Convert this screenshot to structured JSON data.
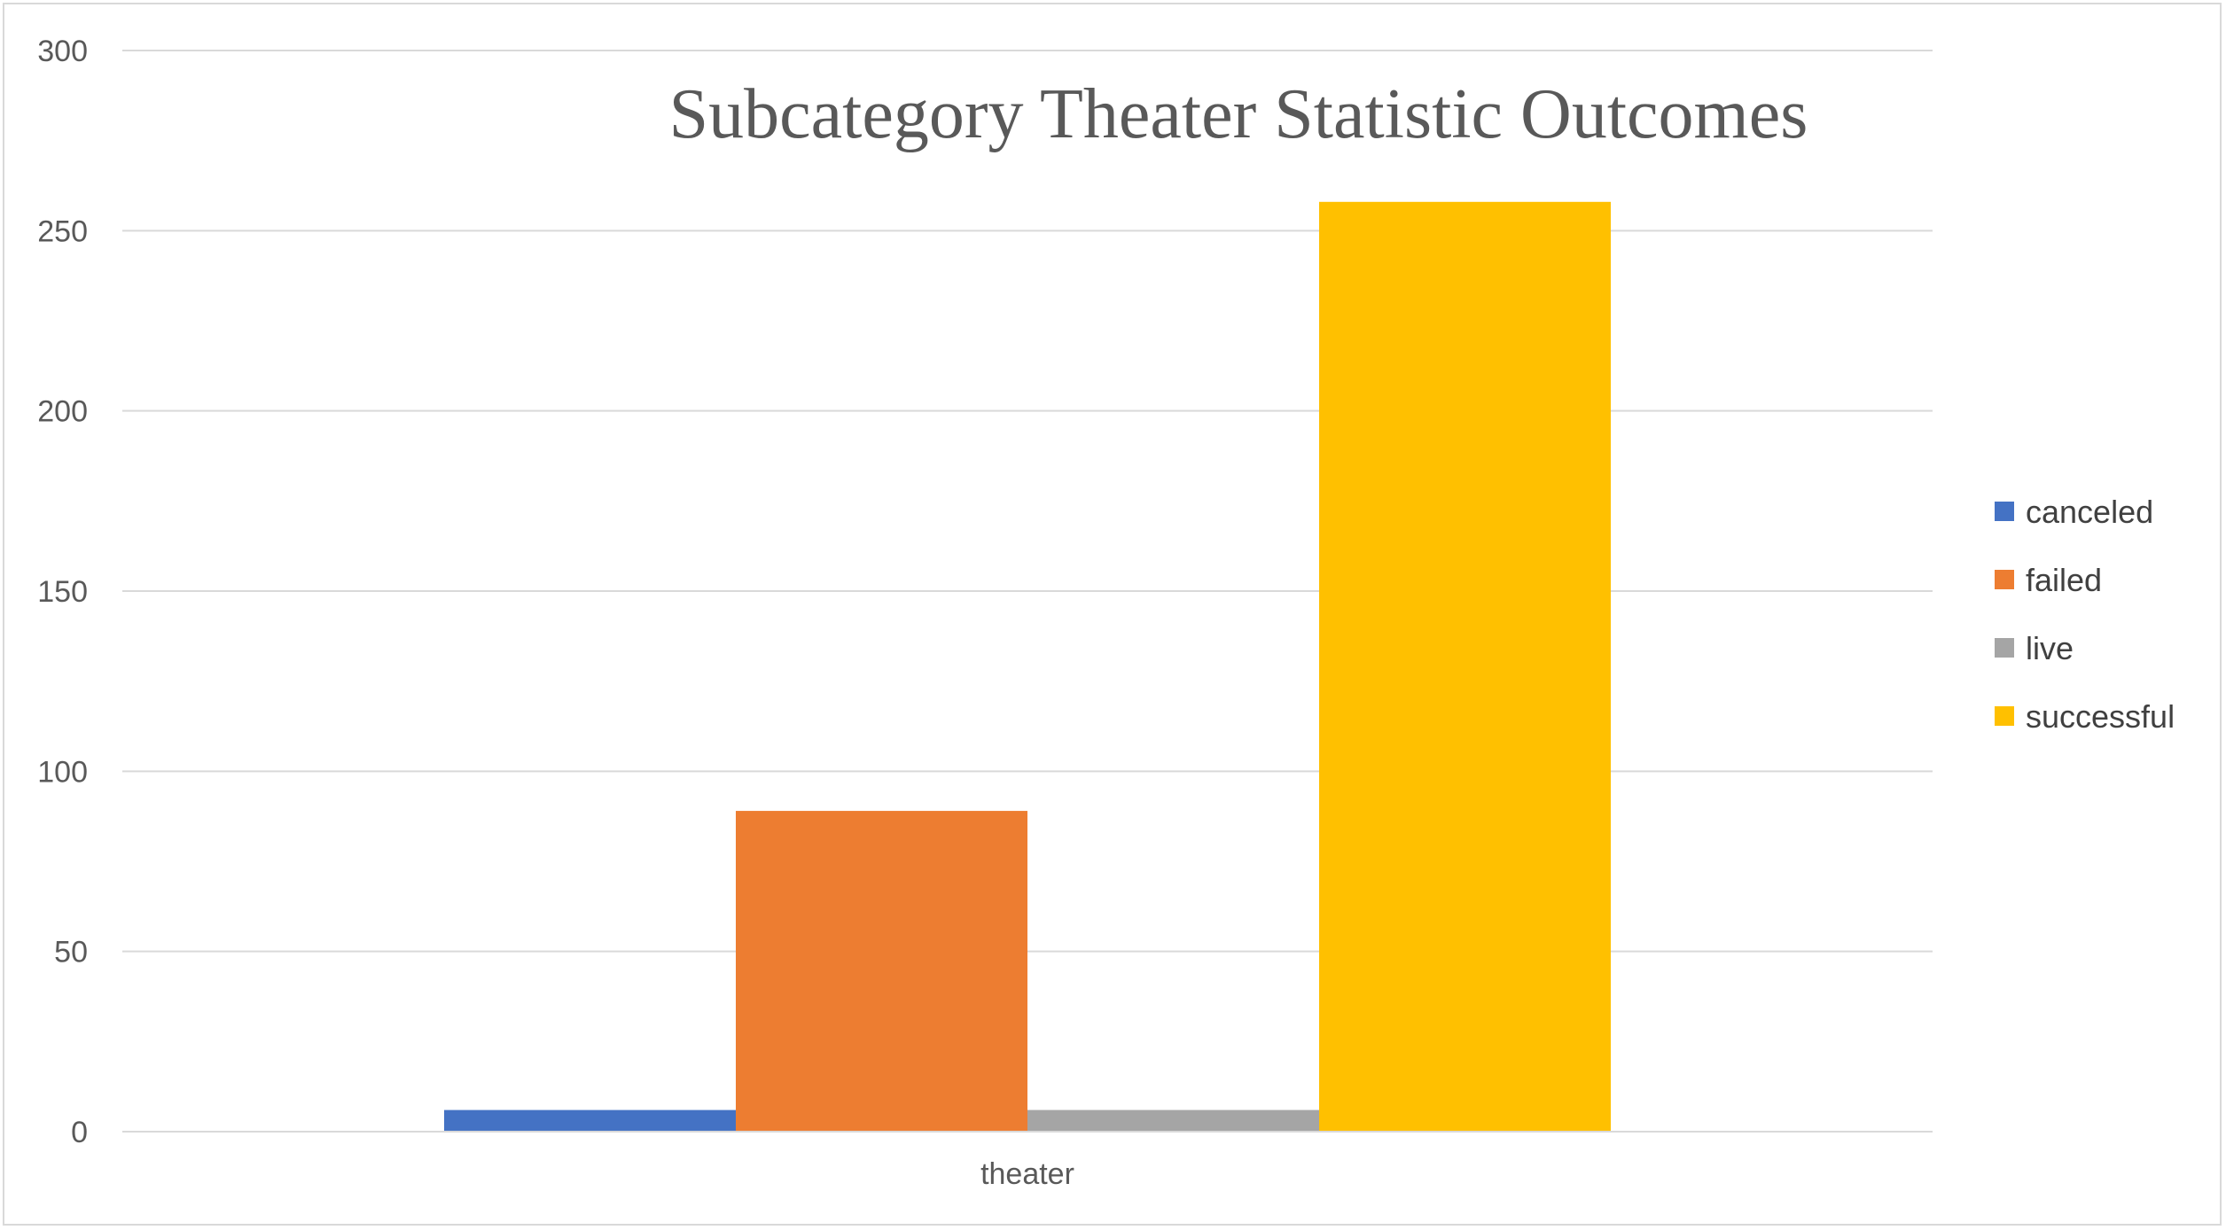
{
  "chart_data": {
    "type": "bar",
    "title": "Subcategory Theater Statistic Outcomes",
    "xlabel": "",
    "ylabel": "",
    "categories": [
      "theater"
    ],
    "series": [
      {
        "name": "canceled",
        "values": [
          6
        ],
        "color": "#4472c4"
      },
      {
        "name": "failed",
        "values": [
          89
        ],
        "color": "#ed7d31"
      },
      {
        "name": "live",
        "values": [
          6
        ],
        "color": "#a5a5a5"
      },
      {
        "name": "successful",
        "values": [
          258
        ],
        "color": "#ffc000"
      }
    ],
    "ylim": [
      0,
      300
    ],
    "yticks": [
      0,
      50,
      100,
      150,
      200,
      250,
      300
    ],
    "grid": true,
    "legend": "right"
  }
}
